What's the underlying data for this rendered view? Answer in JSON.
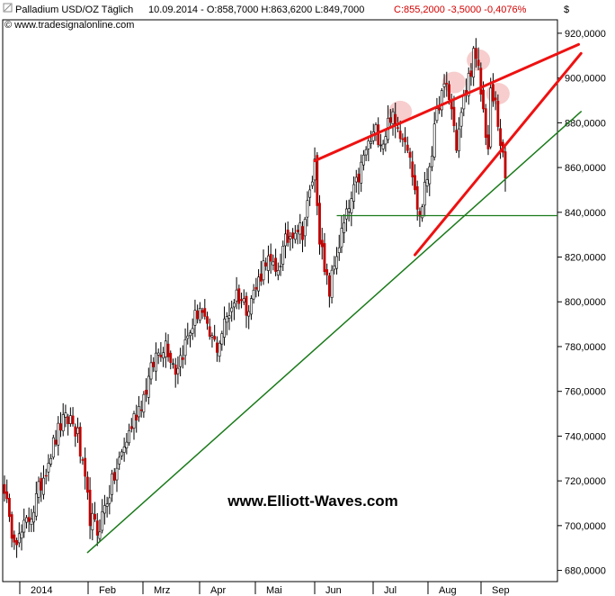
{
  "header": {
    "instrument": "Palladium USD/OZ Täglich",
    "quote_main": "10.09.2014 - O:858,7000 H:863,6200 L:849,7000",
    "quote_change": "C:855,2000 -3,5000 -0,4076%",
    "copyright": "© www.tradesignalonline.com",
    "currency": "$"
  },
  "watermark": "www.Elliott-Waves.com",
  "chart_data": {
    "type": "candlestick",
    "x_labels": [
      "2014",
      "Feb",
      "Mrz",
      "Apr",
      "Mai",
      "Jun",
      "Jul",
      "Aug",
      "Sep"
    ],
    "y_ticks": [
      "920,0000",
      "900,0000",
      "880,0000",
      "860,0000",
      "840,0000",
      "820,0000",
      "800,0000",
      "780,0000",
      "760,0000",
      "740,0000",
      "720,0000",
      "700,0000",
      "680,0000"
    ],
    "ylim": [
      675,
      926
    ],
    "last_close": 855.2,
    "colors": {
      "up": "#ffffff",
      "down": "#c00000",
      "wick": "#000000",
      "trend": "#1a7a1a",
      "wedge": "#ee1111",
      "highlight": "#f4b8b8"
    },
    "price_path": [
      [
        0,
        718
      ],
      [
        2,
        700
      ],
      [
        6,
        694
      ],
      [
        12,
        708
      ],
      [
        18,
        730
      ],
      [
        23,
        745
      ],
      [
        27,
        748
      ],
      [
        30,
        740
      ],
      [
        32,
        725
      ],
      [
        35,
        704
      ],
      [
        38,
        697
      ],
      [
        42,
        712
      ],
      [
        48,
        732
      ],
      [
        53,
        748
      ],
      [
        57,
        758
      ],
      [
        62,
        776
      ],
      [
        66,
        782
      ],
      [
        70,
        770
      ],
      [
        73,
        778
      ],
      [
        77,
        790
      ],
      [
        80,
        798
      ],
      [
        83,
        786
      ],
      [
        87,
        780
      ],
      [
        91,
        793
      ],
      [
        95,
        804
      ],
      [
        99,
        798
      ],
      [
        103,
        806
      ],
      [
        107,
        820
      ],
      [
        111,
        812
      ],
      [
        115,
        826
      ],
      [
        119,
        834
      ],
      [
        122,
        832
      ],
      [
        125,
        848
      ],
      [
        127,
        862
      ],
      [
        129,
        830
      ],
      [
        131,
        812
      ],
      [
        133,
        805
      ],
      [
        136,
        822
      ],
      [
        140,
        838
      ],
      [
        144,
        852
      ],
      [
        148,
        868
      ],
      [
        152,
        876
      ],
      [
        155,
        872
      ],
      [
        158,
        884
      ],
      [
        160,
        878
      ],
      [
        163,
        876
      ],
      [
        166,
        868
      ],
      [
        168,
        848
      ],
      [
        170,
        838
      ],
      [
        173,
        856
      ],
      [
        176,
        875
      ],
      [
        178,
        890
      ],
      [
        181,
        896
      ],
      [
        183,
        886
      ],
      [
        185,
        870
      ],
      [
        188,
        890
      ],
      [
        190,
        900
      ],
      [
        192,
        910
      ],
      [
        194,
        902
      ],
      [
        196,
        885
      ],
      [
        198,
        868
      ],
      [
        199,
        892
      ],
      [
        201,
        888
      ],
      [
        203,
        872
      ],
      [
        204,
        863
      ],
      [
        205,
        855
      ]
    ],
    "horizontal_level": 838.5,
    "lower_trendline": [
      [
        34,
        688
      ],
      [
        236,
        885
      ]
    ],
    "upper_wedge_line": [
      [
        127,
        863
      ],
      [
        235,
        915
      ]
    ],
    "lower_wedge_line": [
      [
        168,
        821
      ],
      [
        236,
        911
      ]
    ],
    "circled_highs": [
      [
        162,
        885
      ],
      [
        184,
        898
      ],
      [
        194,
        908
      ],
      [
        202,
        893
      ]
    ]
  }
}
